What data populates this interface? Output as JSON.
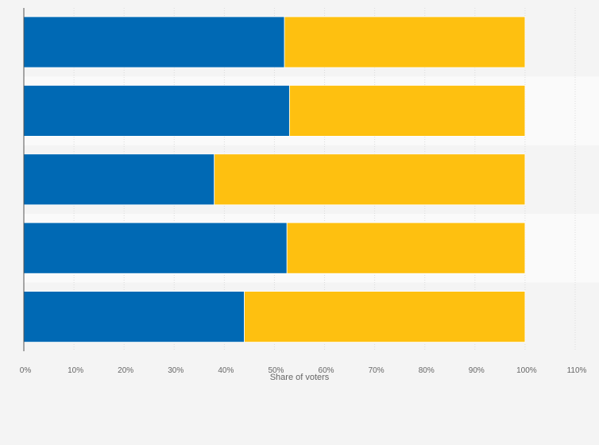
{
  "chart_data": {
    "type": "bar",
    "orientation": "horizontal",
    "stacked": true,
    "categories": [
      "",
      "",
      "",
      "",
      ""
    ],
    "series": [
      {
        "values": [
          52,
          53,
          38,
          52.5,
          44
        ],
        "color": "#0069b4"
      },
      {
        "values": [
          48,
          47,
          62,
          47.5,
          56
        ],
        "color": "#fec010"
      }
    ],
    "xlabel": "Share of voters",
    "ylabel": "",
    "xlim": [
      0,
      110
    ],
    "x_ticks": [
      0,
      10,
      20,
      30,
      40,
      50,
      60,
      70,
      80,
      90,
      100,
      110
    ],
    "x_tick_labels": [
      "0%",
      "10%",
      "20%",
      "30%",
      "40%",
      "50%",
      "60%",
      "70%",
      "80%",
      "90%",
      "100%",
      "110%"
    ],
    "grid": "vertical-dashed",
    "legend": "none"
  }
}
